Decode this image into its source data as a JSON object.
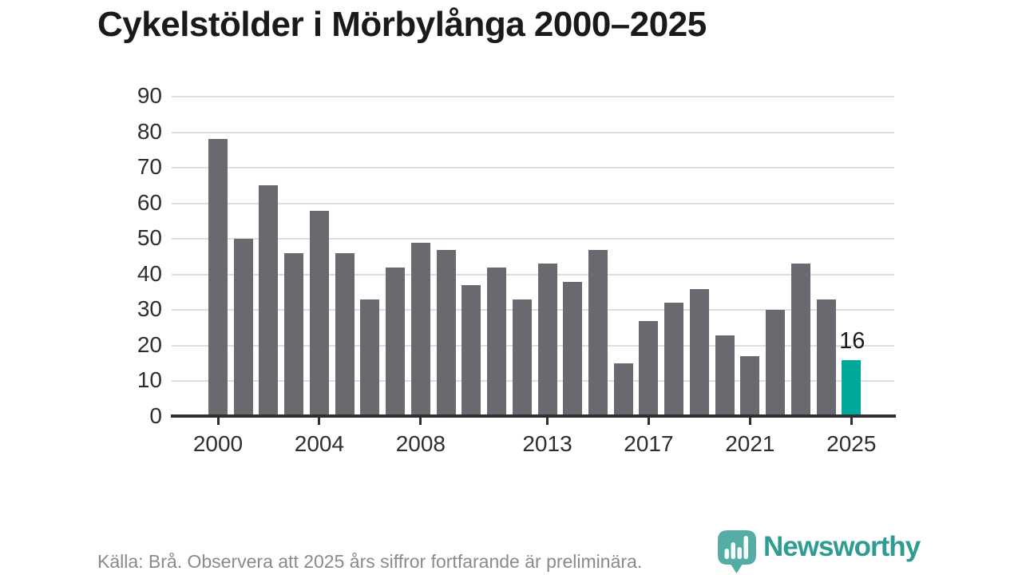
{
  "title": "Cykelstölder i Mörbylånga 2000–2025",
  "chart_data": {
    "type": "bar",
    "title": "Cykelstölder i Mörbylånga 2000–2025",
    "xlabel": "",
    "ylabel": "",
    "categories": [
      "2000",
      "2001",
      "2002",
      "2003",
      "2004",
      "2005",
      "2006",
      "2007",
      "2008",
      "2009",
      "2010",
      "2011",
      "2012",
      "2013",
      "2014",
      "2015",
      "2016",
      "2017",
      "2018",
      "2019",
      "2020",
      "2021",
      "2022",
      "2023",
      "2024",
      "2025"
    ],
    "values": [
      78,
      50,
      65,
      46,
      58,
      46,
      33,
      42,
      49,
      47,
      37,
      42,
      33,
      43,
      38,
      47,
      15,
      27,
      32,
      36,
      23,
      17,
      30,
      43,
      33,
      16
    ],
    "ylim": [
      0,
      90
    ],
    "y_ticks": [
      0,
      10,
      20,
      30,
      40,
      50,
      60,
      70,
      80,
      90
    ],
    "x_tick_labels": [
      "2000",
      "2004",
      "2008",
      "2013",
      "2017",
      "2021",
      "2025"
    ],
    "grid": true,
    "legend": "none",
    "bar_color": "#6b6970",
    "highlight_index": 25,
    "highlight_color": "#00a79b",
    "highlight_value_label": "16"
  },
  "footer": {
    "source_note": "Källa: Brå. Observera att 2025 års siffror fortfarande är preliminära."
  },
  "branding": {
    "logo_text": "Newsworthy",
    "logo_icon": "newsworthy-speech-bubble-bar-chart-icon",
    "logo_color": "#2f9c92",
    "logo_bubble_color": "#3da097"
  },
  "colors": {
    "background": "#ffffff",
    "title_text": "#1a1a1a",
    "axis_text": "#2e2e2e",
    "axis_line": "#2f2f2f",
    "gridline": "#dedede",
    "footer_text": "#8a8a8a"
  }
}
